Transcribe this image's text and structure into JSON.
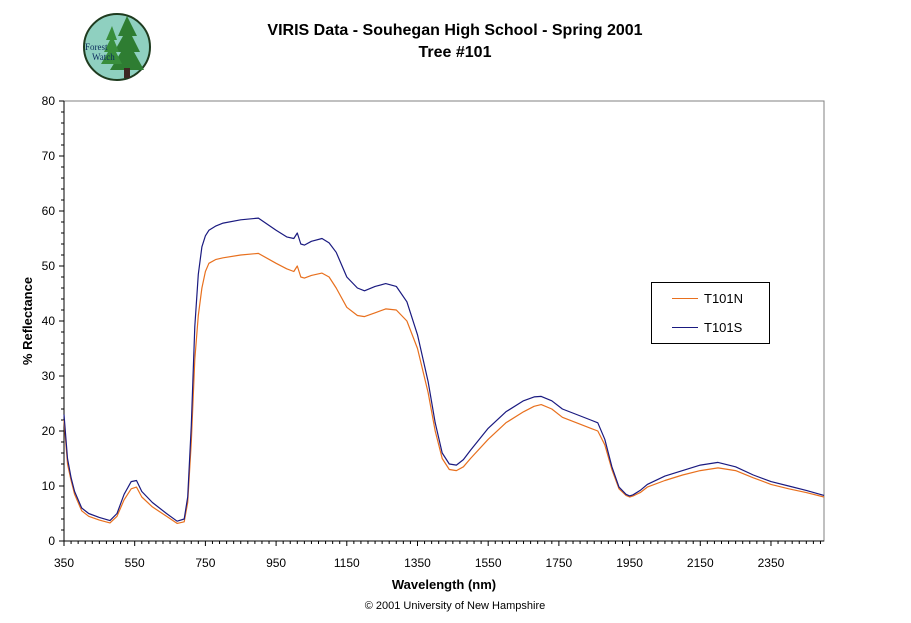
{
  "chart_data": {
    "type": "line",
    "title": "VIRIS Data - Souhegan High School - Spring 2001",
    "subtitle": "Tree #101",
    "xlabel": "Wavelength (nm)",
    "ylabel": "% Reflectance",
    "xlim": [
      350,
      2500
    ],
    "ylim": [
      0,
      80
    ],
    "xticks": [
      350,
      550,
      750,
      950,
      1150,
      1350,
      1550,
      1750,
      1950,
      2150,
      2350
    ],
    "yticks": [
      0,
      10,
      20,
      30,
      40,
      50,
      60,
      70,
      80
    ],
    "grid": false,
    "legend_position": "right",
    "series": [
      {
        "name": "T101N",
        "color": "#E8701E",
        "x": [
          350,
          360,
          370,
          380,
          400,
          420,
          450,
          480,
          500,
          520,
          540,
          555,
          570,
          600,
          640,
          670,
          690,
          700,
          710,
          720,
          730,
          740,
          750,
          760,
          780,
          800,
          850,
          900,
          950,
          980,
          1000,
          1010,
          1020,
          1030,
          1050,
          1080,
          1100,
          1120,
          1150,
          1180,
          1200,
          1230,
          1260,
          1290,
          1320,
          1350,
          1380,
          1400,
          1420,
          1440,
          1460,
          1480,
          1500,
          1550,
          1600,
          1650,
          1680,
          1700,
          1730,
          1760,
          1800,
          1840,
          1860,
          1880,
          1900,
          1920,
          1940,
          1950,
          1960,
          1980,
          2000,
          2050,
          2100,
          2150,
          2200,
          2250,
          2300,
          2350,
          2400,
          2450,
          2500
        ],
        "values": [
          22,
          14,
          11,
          8.5,
          5.5,
          4.5,
          3.8,
          3.3,
          4.5,
          7.5,
          9.5,
          9.8,
          8,
          6.2,
          4.5,
          3.2,
          3.5,
          7,
          18,
          33,
          41,
          46,
          49,
          50.5,
          51.2,
          51.5,
          52,
          52.3,
          50.5,
          49.5,
          49,
          50,
          48,
          47.8,
          48.3,
          48.7,
          48,
          46,
          42.5,
          41,
          40.8,
          41.5,
          42.2,
          42,
          40,
          35,
          27,
          20,
          15,
          13,
          12.8,
          13.5,
          15,
          18.5,
          21.5,
          23.5,
          24.5,
          24.8,
          24,
          22.5,
          21.5,
          20.5,
          20,
          17.5,
          13,
          9.5,
          8.3,
          8,
          8.2,
          8.8,
          9.8,
          11,
          12,
          12.8,
          13.3,
          12.8,
          11.5,
          10.3,
          9.5,
          8.8,
          8
        ],
        "line_points_dummy": []
      },
      {
        "name": "T101S",
        "color": "#1A1A80",
        "x": [
          350,
          360,
          370,
          380,
          400,
          420,
          450,
          480,
          500,
          520,
          540,
          555,
          570,
          600,
          640,
          670,
          690,
          700,
          710,
          720,
          730,
          740,
          750,
          760,
          780,
          800,
          850,
          900,
          950,
          980,
          1000,
          1010,
          1020,
          1030,
          1050,
          1080,
          1100,
          1120,
          1150,
          1180,
          1200,
          1230,
          1260,
          1290,
          1320,
          1350,
          1380,
          1400,
          1420,
          1440,
          1460,
          1480,
          1500,
          1550,
          1600,
          1650,
          1680,
          1700,
          1730,
          1760,
          1800,
          1840,
          1860,
          1880,
          1900,
          1920,
          1940,
          1950,
          1960,
          1980,
          2000,
          2050,
          2100,
          2150,
          2200,
          2250,
          2300,
          2350,
          2400,
          2450,
          2500
        ],
        "values": [
          23,
          15,
          11.5,
          9,
          6,
          5,
          4.3,
          3.7,
          5,
          8.5,
          10.8,
          11,
          9,
          7,
          5,
          3.6,
          4,
          8,
          21,
          39,
          48.5,
          53.5,
          55.5,
          56.5,
          57.3,
          57.8,
          58.4,
          58.7,
          56.5,
          55.3,
          55,
          56,
          54,
          53.8,
          54.5,
          55,
          54.2,
          52.5,
          48,
          46,
          45.5,
          46.3,
          46.8,
          46.3,
          43.5,
          37.5,
          29,
          21.5,
          16,
          14,
          13.8,
          14.8,
          16.5,
          20.5,
          23.5,
          25.5,
          26.2,
          26.3,
          25.5,
          24,
          23,
          22,
          21.5,
          18.5,
          13.5,
          9.8,
          8.5,
          8.2,
          8.4,
          9.2,
          10.3,
          11.8,
          12.8,
          13.8,
          14.3,
          13.5,
          12,
          10.8,
          10,
          9.2,
          8.3
        ],
        "line_points_dummy": []
      }
    ]
  },
  "page": {
    "title_line1": "VIRIS Data - Souhegan High School - Spring 2001",
    "title_line2": "Tree #101",
    "credit": "© 2001 University of New Hampshire",
    "logo_text_line1": "Forest",
    "logo_text_line2": "Watch"
  },
  "legend": {
    "items": [
      {
        "label": "T101N",
        "color": "#E8701E"
      },
      {
        "label": "T101S",
        "color": "#1A1A80"
      }
    ]
  }
}
